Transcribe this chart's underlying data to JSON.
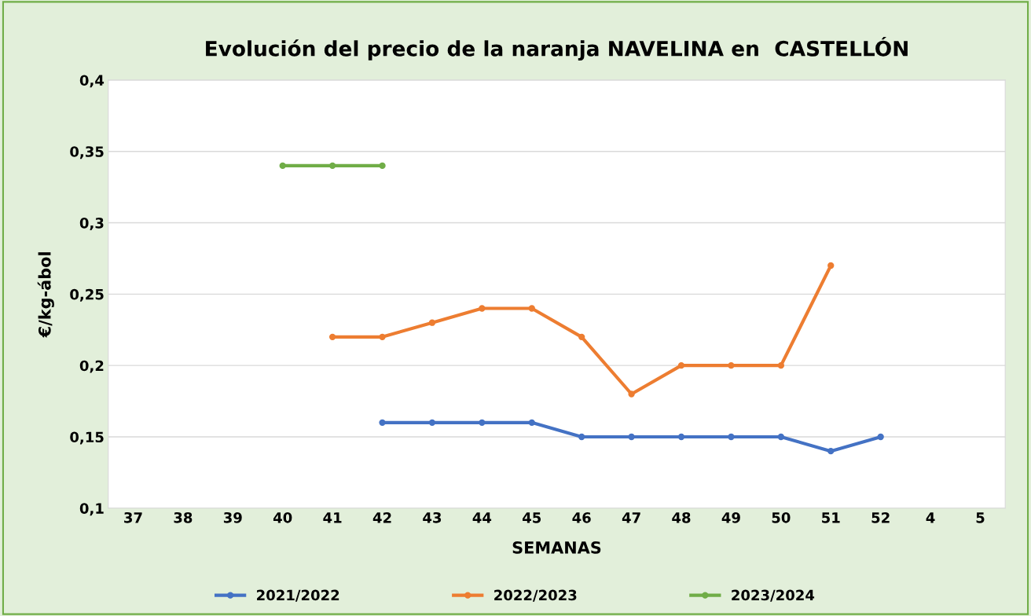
{
  "chart_data": {
    "type": "line",
    "title": "Evolución del precio de la naranja NAVELINA en  CASTELLÓN",
    "xlabel": "SEMANAS",
    "ylabel": "€/kg-ábol",
    "categories": [
      "37",
      "38",
      "39",
      "40",
      "41",
      "42",
      "43",
      "44",
      "45",
      "46",
      "47",
      "48",
      "49",
      "50",
      "51",
      "52",
      "4",
      "5"
    ],
    "series": [
      {
        "name": "2021/2022",
        "color": "#4472c4",
        "values": [
          null,
          null,
          null,
          null,
          null,
          0.16,
          0.16,
          0.16,
          0.16,
          0.15,
          0.15,
          0.15,
          0.15,
          0.15,
          0.14,
          0.15,
          null,
          null
        ]
      },
      {
        "name": "2022/2023",
        "color": "#ed7d31",
        "values": [
          null,
          null,
          null,
          null,
          0.22,
          0.22,
          0.23,
          0.24,
          0.24,
          0.22,
          0.18,
          0.2,
          0.2,
          0.2,
          0.27,
          null,
          null,
          null
        ]
      },
      {
        "name": "2023/2024",
        "color": "#70ad47",
        "values": [
          null,
          null,
          null,
          0.34,
          0.34,
          0.34,
          null,
          null,
          null,
          null,
          null,
          null,
          null,
          null,
          null,
          null,
          null,
          null
        ]
      }
    ],
    "ylim": [
      0.1,
      0.4
    ],
    "yticks": [
      {
        "value": 0.1,
        "label": "0,1"
      },
      {
        "value": 0.15,
        "label": "0,15"
      },
      {
        "value": 0.2,
        "label": "0,2"
      },
      {
        "value": 0.25,
        "label": "0,25"
      },
      {
        "value": 0.3,
        "label": "0,3"
      },
      {
        "value": 0.35,
        "label": "0,35"
      },
      {
        "value": 0.4,
        "label": "0,4"
      }
    ],
    "grid": "y",
    "legend": "bottom",
    "marker": "circle",
    "line_style": "solid"
  }
}
